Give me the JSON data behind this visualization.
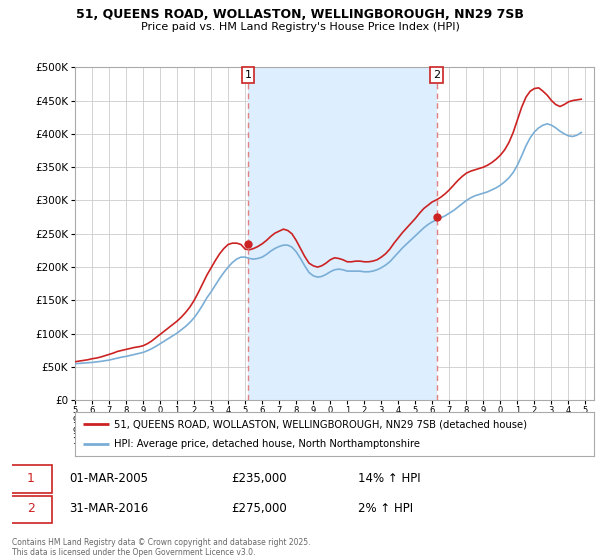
{
  "title": "51, QUEENS ROAD, WOLLASTON, WELLINGBOROUGH, NN29 7SB",
  "subtitle": "Price paid vs. HM Land Registry's House Price Index (HPI)",
  "ylim": [
    0,
    500000
  ],
  "xlim_start": 1995.0,
  "xlim_end": 2025.5,
  "purchase1_year": 2005.17,
  "purchase1_price": 235000,
  "purchase2_year": 2016.25,
  "purchase2_price": 275000,
  "purchase1_date": "01-MAR-2005",
  "purchase1_hpi_text": "14% ↑ HPI",
  "purchase2_date": "31-MAR-2016",
  "purchase2_hpi_text": "2% ↑ HPI",
  "hpi_color": "#7aaed6",
  "price_color": "#cc2222",
  "shade_color": "#ddeeff",
  "dashed_color": "#e08080",
  "background_color": "#ffffff",
  "grid_color": "#cccccc",
  "legend_line1": "51, QUEENS ROAD, WOLLASTON, WELLINGBOROUGH, NN29 7SB (detached house)",
  "legend_line2": "HPI: Average price, detached house, North Northamptonshire",
  "footnote": "Contains HM Land Registry data © Crown copyright and database right 2025.\nThis data is licensed under the Open Government Licence v3.0.",
  "hpi_data": [
    55000,
    55500,
    56000,
    56500,
    57000,
    57800,
    58500,
    59500,
    60500,
    62000,
    63500,
    65000,
    66000,
    67500,
    69000,
    70500,
    72000,
    74500,
    77500,
    81000,
    85000,
    89000,
    93000,
    97000,
    101000,
    106000,
    111000,
    117000,
    124000,
    133000,
    143000,
    154000,
    163000,
    173000,
    183000,
    192000,
    200000,
    207000,
    212000,
    215000,
    215000,
    213000,
    212000,
    213000,
    215000,
    219000,
    224000,
    228000,
    231000,
    233000,
    233000,
    230000,
    223000,
    213000,
    202000,
    192000,
    187000,
    185000,
    186000,
    189000,
    193000,
    196000,
    197000,
    196000,
    194000,
    194000,
    194000,
    194000,
    193000,
    193000,
    194000,
    196000,
    199000,
    203000,
    208000,
    215000,
    222000,
    229000,
    235000,
    241000,
    247000,
    253000,
    259000,
    264000,
    268000,
    271000,
    274000,
    277000,
    281000,
    285000,
    290000,
    295000,
    300000,
    304000,
    307000,
    309000,
    311000,
    313000,
    316000,
    319000,
    323000,
    328000,
    334000,
    342000,
    353000,
    367000,
    382000,
    394000,
    403000,
    409000,
    413000,
    415000,
    413000,
    409000,
    404000,
    400000,
    397000,
    396000,
    398000,
    402000
  ],
  "price_data": [
    58000,
    59000,
    60000,
    61000,
    62500,
    63500,
    65000,
    67000,
    69000,
    71000,
    73500,
    75000,
    76500,
    78000,
    79500,
    80500,
    82000,
    85000,
    89000,
    94000,
    99000,
    104000,
    109000,
    114000,
    119000,
    125000,
    132000,
    140000,
    150000,
    162000,
    175000,
    188000,
    199000,
    210000,
    220000,
    228000,
    234000,
    236000,
    236000,
    234000,
    227000,
    226000,
    228000,
    231000,
    235000,
    240000,
    246000,
    251000,
    254000,
    257000,
    255000,
    250000,
    240000,
    228000,
    216000,
    206000,
    202000,
    200000,
    202000,
    206000,
    211000,
    214000,
    213000,
    211000,
    208000,
    208000,
    209000,
    209000,
    208000,
    208000,
    209000,
    211000,
    215000,
    220000,
    227000,
    236000,
    244000,
    252000,
    259000,
    266000,
    273000,
    281000,
    288000,
    293000,
    298000,
    301000,
    305000,
    310000,
    316000,
    323000,
    330000,
    336000,
    341000,
    344000,
    346000,
    348000,
    350000,
    353000,
    357000,
    362000,
    368000,
    376000,
    387000,
    402000,
    421000,
    440000,
    455000,
    464000,
    468000,
    469000,
    464000,
    458000,
    450000,
    444000,
    441000,
    444000,
    448000,
    450000,
    451000,
    452000
  ]
}
